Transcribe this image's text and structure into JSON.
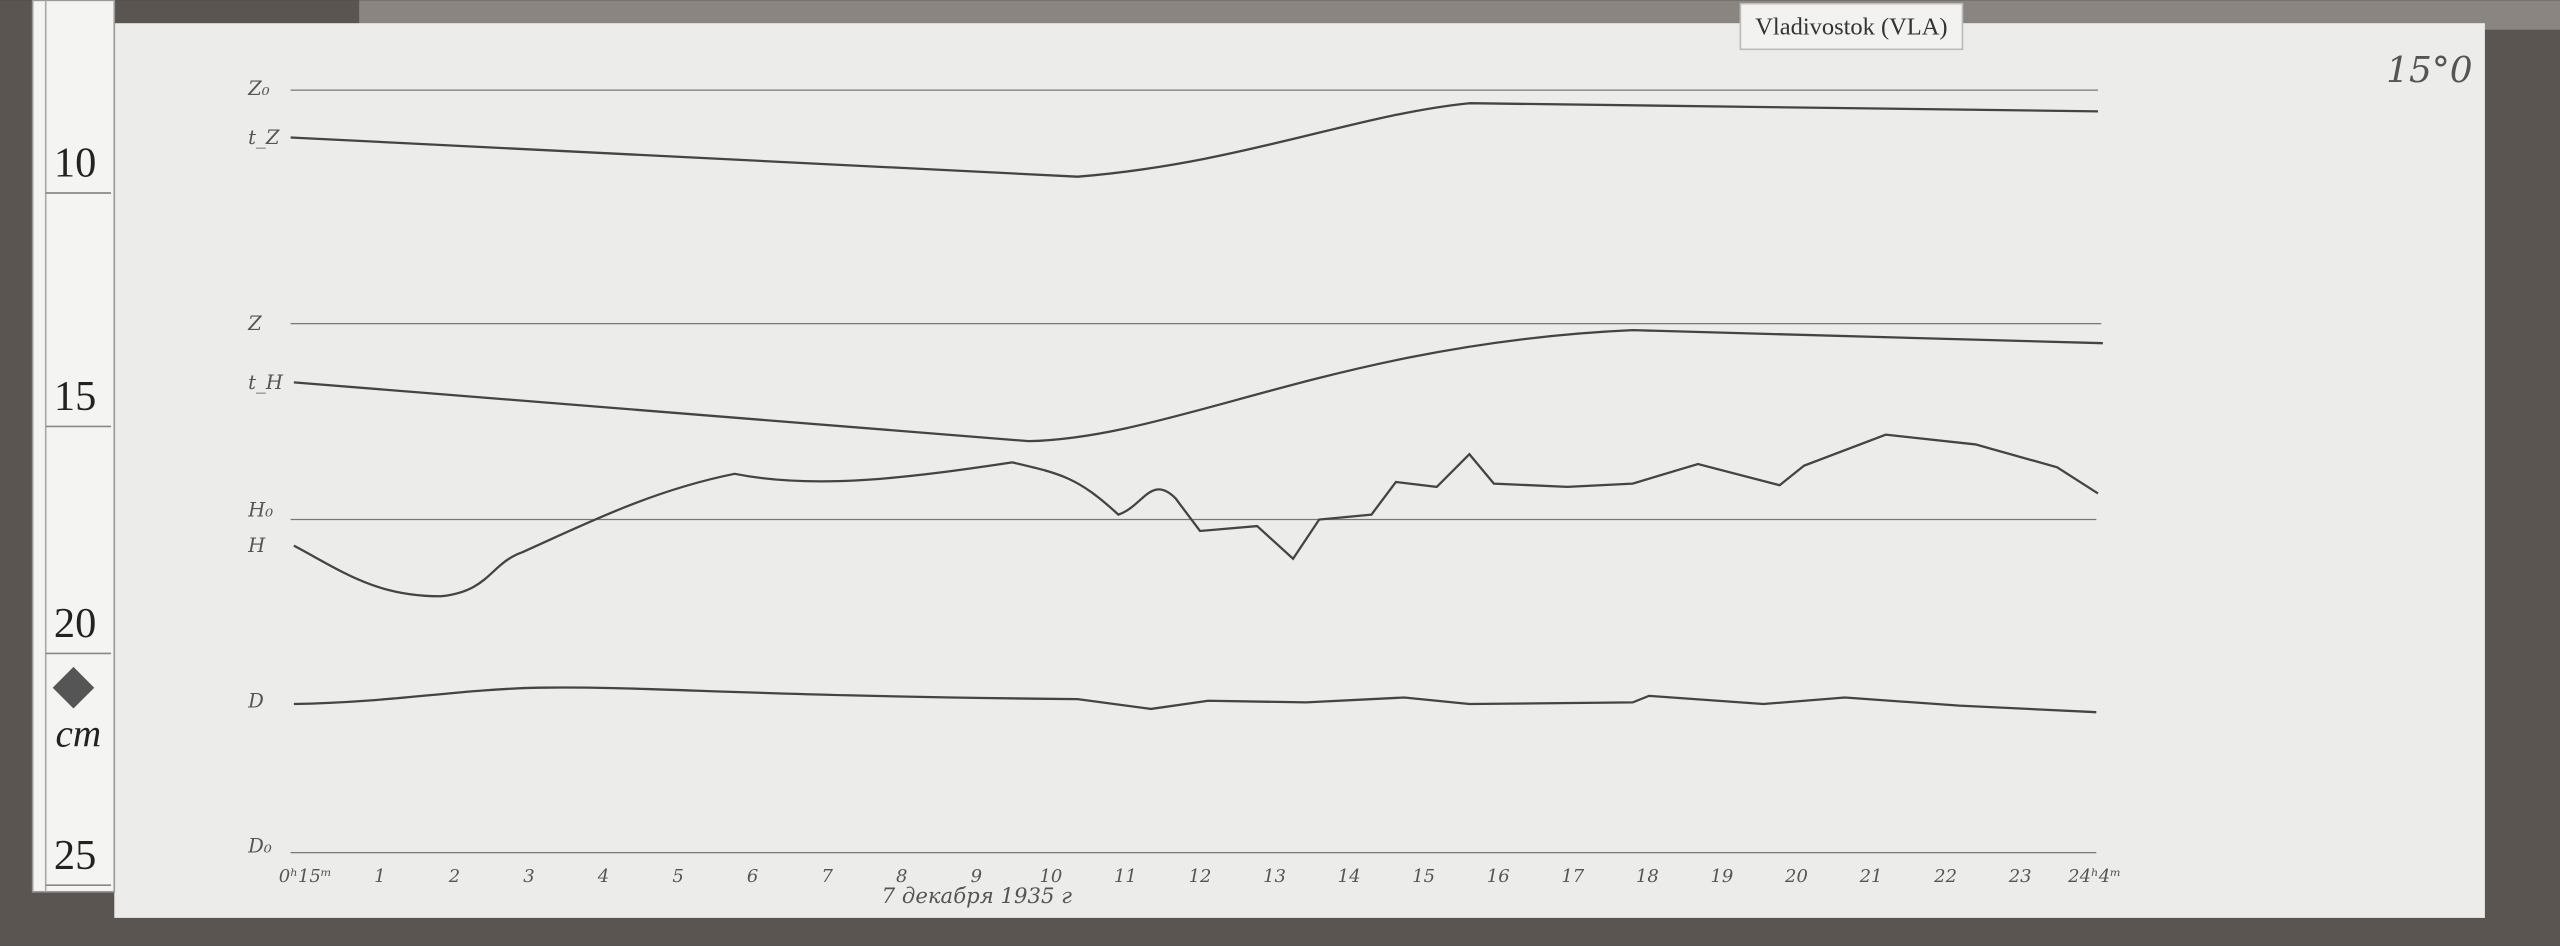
{
  "header": {
    "station": "Vladivostok (VLA)",
    "plate": "15°0"
  },
  "ruler": {
    "marks": [
      "10",
      "15",
      "20",
      "25"
    ],
    "unit": "cm"
  },
  "trace_labels": [
    "Z₀",
    "t_Z",
    "Z",
    "t_H",
    "H₀",
    "H",
    "D",
    "D₀"
  ],
  "hours": [
    "0ʰ15ᵐ",
    "1",
    "2",
    "3",
    "4",
    "5",
    "6",
    "7",
    "8",
    "9",
    "10",
    "11",
    "12",
    "13",
    "14",
    "15",
    "16",
    "17",
    "18",
    "19",
    "20",
    "21",
    "22",
    "23",
    "24ʰ4ᵐ"
  ],
  "caption": "7 декабря 1935 г"
}
